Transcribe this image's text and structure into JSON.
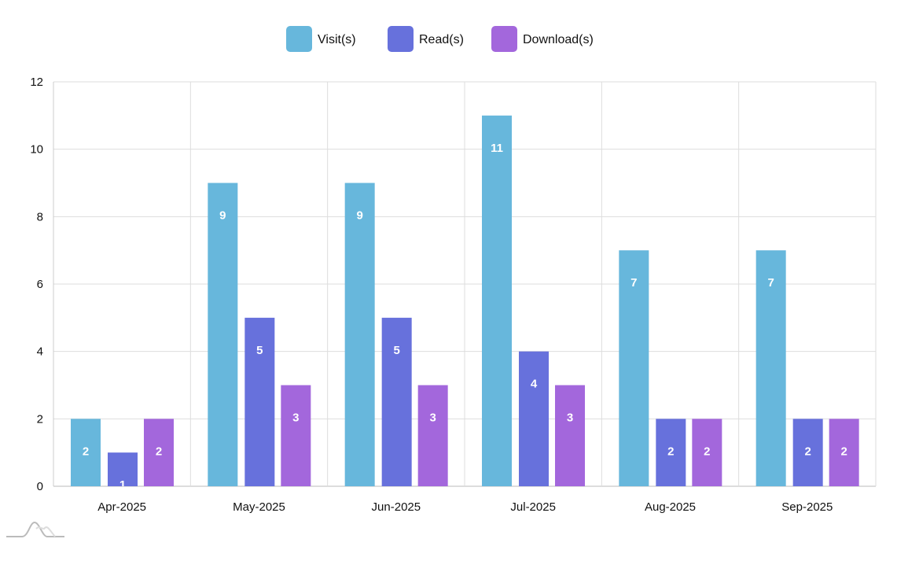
{
  "chart_data": {
    "type": "bar",
    "title": "",
    "xlabel": "",
    "ylabel": "",
    "categories": [
      "Apr-2025",
      "May-2025",
      "Jun-2025",
      "Jul-2025",
      "Aug-2025",
      "Sep-2025"
    ],
    "series": [
      {
        "name": "Visit(s)",
        "color": "#67b7dc",
        "values": [
          2,
          9,
          9,
          11,
          7,
          7
        ]
      },
      {
        "name": "Read(s)",
        "color": "#6771dc",
        "values": [
          1,
          5,
          5,
          4,
          2,
          2
        ]
      },
      {
        "name": "Download(s)",
        "color": "#a367dc",
        "values": [
          2,
          3,
          3,
          3,
          2,
          2
        ]
      }
    ],
    "ylim": [
      0,
      12
    ],
    "yticks": [
      0,
      2,
      4,
      6,
      8,
      10,
      12
    ],
    "grid": true,
    "legend_position": "top-center",
    "data_labels": true
  }
}
